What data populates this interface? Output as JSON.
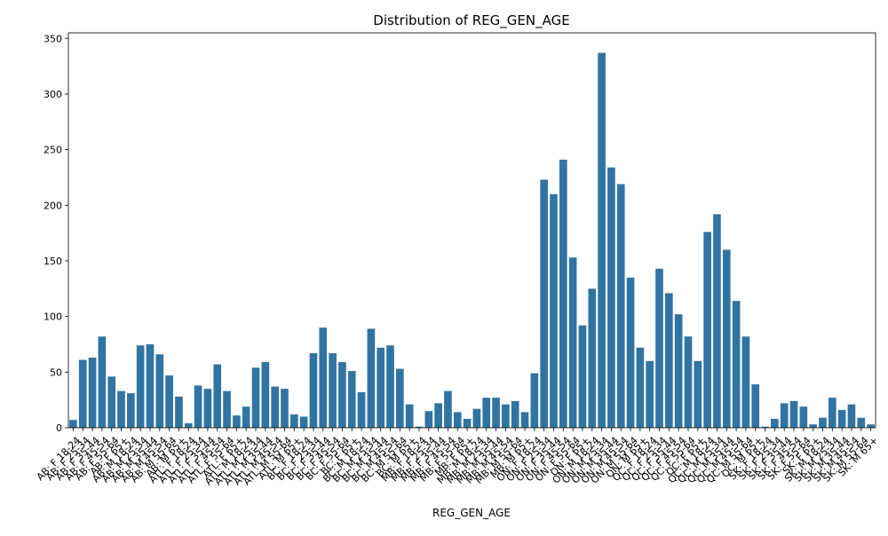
{
  "chart_data": {
    "type": "bar",
    "title": "Distribution of REG_GEN_AGE",
    "xlabel": "REG_GEN_AGE",
    "ylabel": "",
    "ylim": [
      0,
      355
    ],
    "yticks": [
      0,
      50,
      100,
      150,
      200,
      250,
      300,
      350
    ],
    "bar_color": "#3274a1",
    "grid": false,
    "categories": [
      "AB: F 18-24",
      "AB: F 25-34",
      "AB: F 35-44",
      "AB: F 45-54",
      "AB: F 55-64",
      "AB: F 65+",
      "AB: M 18-24",
      "AB: M 25-34",
      "AB: M 35-44",
      "AB: M 45-54",
      "AB: M 55-64",
      "AB: M 65+",
      "ATL: F 18-24",
      "ATL: F 25-34",
      "ATL: F 35-44",
      "ATL: F 45-54",
      "ATL: F 55-64",
      "ATL: F 65+",
      "ATL: M 18-24",
      "ATL: M 25-34",
      "ATL: M 35-44",
      "ATL: M 45-54",
      "ATL: M 55-64",
      "ATL: M 65+",
      "BC: F 18-24",
      "BC: F 25-34",
      "BC: F 35-44",
      "BC: F 45-54",
      "BC: F 55-64",
      "BC: F 65+",
      "BC: M 18-24",
      "BC: M 25-34",
      "BC: M 35-44",
      "BC: M 45-54",
      "BC: M 55-64",
      "BC: M 65+",
      "MB: F 18-24",
      "MB: F 25-34",
      "MB: F 35-44",
      "MB: F 45-54",
      "MB: F 55-64",
      "MB: F 65+",
      "MB: M 18-24",
      "MB: M 25-34",
      "MB: M 35-44",
      "MB: M 45-54",
      "MB: M 55-64",
      "MB: M 65+",
      "ON: F 18-24",
      "ON: F 25-34",
      "ON: F 35-44",
      "ON: F 45-54",
      "ON: F 55-64",
      "ON: F 65+",
      "ON: M 18-24",
      "ON: M 25-34",
      "ON: M 35-44",
      "ON: M 45-54",
      "ON: M 55-64",
      "ON: M 65+",
      "QC: F 18-24",
      "QC: F 25-34",
      "QC: F 35-44",
      "QC: F 45-54",
      "QC: F 55-64",
      "QC: F 65+",
      "QC: M 18-24",
      "QC: M 25-34",
      "QC: M 35-44",
      "QC: M 45-54",
      "QC: M 55-64",
      "QC: M 65+",
      "SK: F 18-24",
      "SK: F 25-34",
      "SK: F 35-44",
      "SK: F 45-54",
      "SK: F 55-64",
      "SK: F 65+",
      "SK: M 18-24",
      "SK: M 25-34",
      "SK: M 35-44",
      "SK: M 45-54",
      "SK: M 55-64",
      "SK: M 65+"
    ],
    "values": [
      7,
      61,
      63,
      82,
      46,
      33,
      31,
      74,
      75,
      66,
      47,
      28,
      4,
      38,
      35,
      57,
      33,
      11,
      19,
      54,
      59,
      37,
      35,
      12,
      10,
      67,
      90,
      67,
      59,
      51,
      32,
      89,
      72,
      74,
      53,
      21,
      1,
      15,
      22,
      33,
      14,
      8,
      17,
      27,
      27,
      21,
      24,
      14,
      49,
      223,
      210,
      241,
      153,
      92,
      125,
      337,
      234,
      219,
      135,
      72,
      60,
      143,
      121,
      102,
      82,
      60,
      176,
      192,
      160,
      114,
      82,
      39,
      1,
      8,
      22,
      24,
      19,
      3,
      9,
      27,
      16,
      21,
      9,
      3
    ]
  }
}
